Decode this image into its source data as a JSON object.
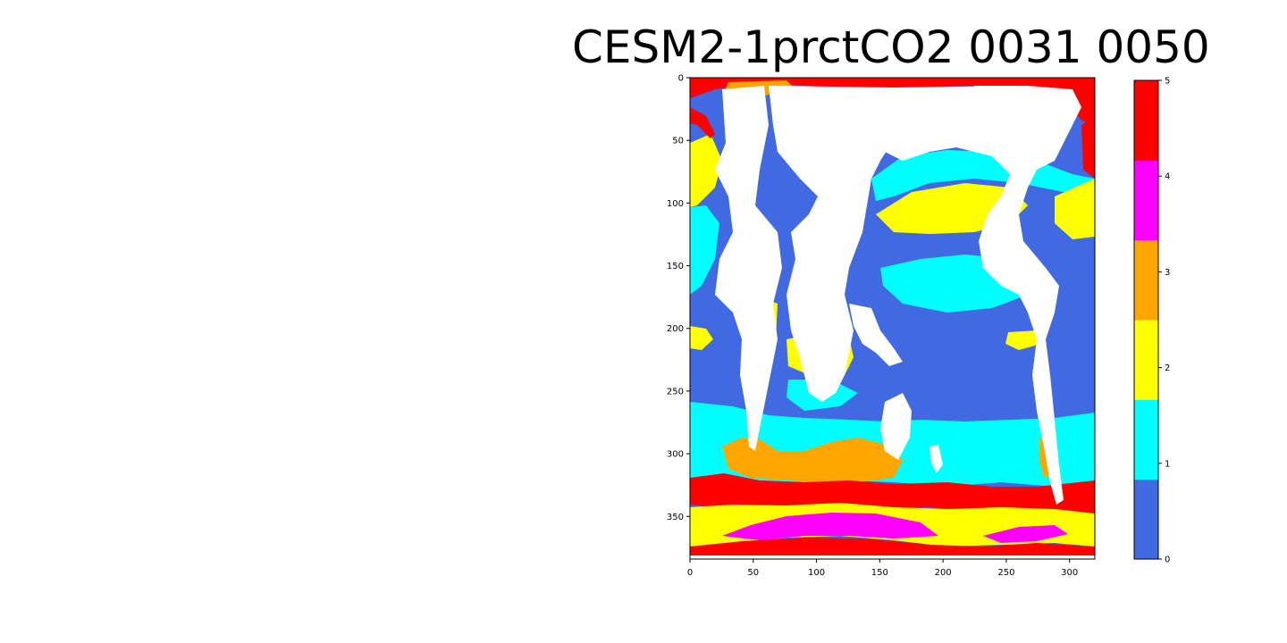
{
  "chart_data": {
    "type": "heatmap",
    "title": "CESM2-1prctCO2 0031 0050",
    "xlabel": "",
    "ylabel": "",
    "xlim": [
      0,
      320
    ],
    "ylim": [
      384,
      0
    ],
    "x_ticks": [
      0,
      50,
      100,
      150,
      200,
      250,
      300
    ],
    "y_ticks": [
      0,
      50,
      100,
      150,
      200,
      250,
      300,
      350
    ],
    "grid": false,
    "colorbar": {
      "vmin": 0,
      "vmax": 5,
      "ticks": [
        0,
        1,
        2,
        3,
        4,
        5
      ],
      "categories": [
        {
          "value": 0,
          "color": "#4169e1"
        },
        {
          "value": 1,
          "color": "#00ffff"
        },
        {
          "value": 2,
          "color": "#ffff00"
        },
        {
          "value": 3,
          "color": "#ffa500"
        },
        {
          "value": 4,
          "color": "#ff00ff"
        },
        {
          "value": 5,
          "color": "#ff0000"
        }
      ]
    },
    "land_color": "#ffffff"
  }
}
